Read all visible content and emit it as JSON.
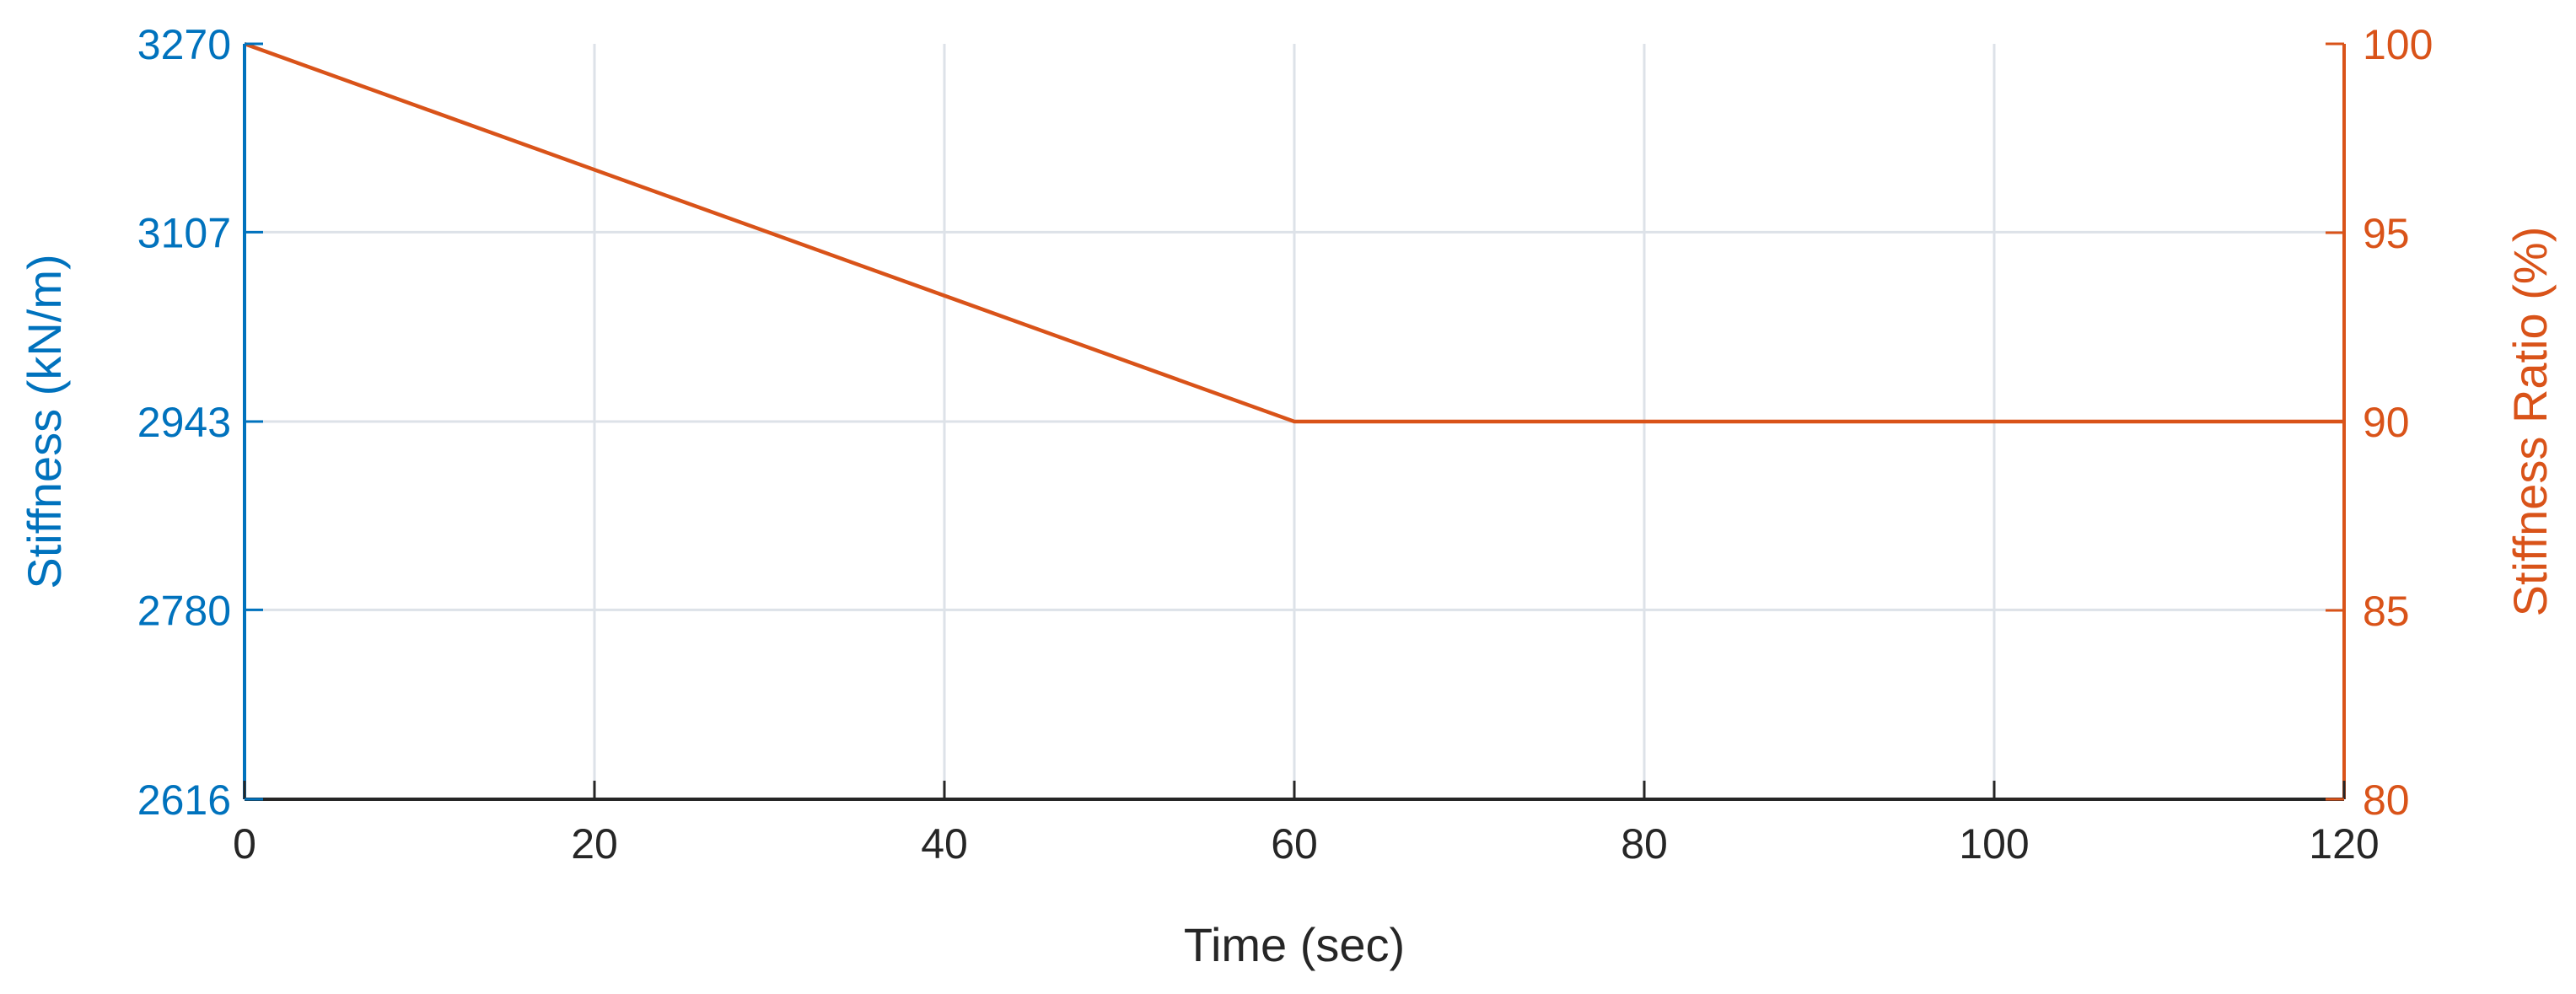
{
  "chart_data": {
    "type": "line",
    "title": "",
    "xlabel": "Time (sec)",
    "ylabel_left": "Stiffness (kN/m)",
    "ylabel_right": "Stiffness Ratio (%)",
    "xlim": [
      0,
      120
    ],
    "ylim_left": [
      2616,
      3270
    ],
    "ylim_right": [
      80,
      100
    ],
    "x_ticks": [
      "0",
      "20",
      "40",
      "60",
      "80",
      "100",
      "120"
    ],
    "y_ticks_left": [
      "2616",
      "2780",
      "2943",
      "3107",
      "3270"
    ],
    "y_ticks_right": [
      "80",
      "85",
      "90",
      "95",
      "100"
    ],
    "grid": true,
    "legend": "none",
    "series": [
      {
        "axis": "right",
        "color": "#D95319",
        "x": [
          0,
          60,
          120
        ],
        "y": [
          100,
          90,
          90
        ]
      }
    ],
    "colors": {
      "left_axis": "#0072BD",
      "right_axis": "#D95319",
      "x_axis": "#262626",
      "grid": "#DDE2E8"
    }
  }
}
